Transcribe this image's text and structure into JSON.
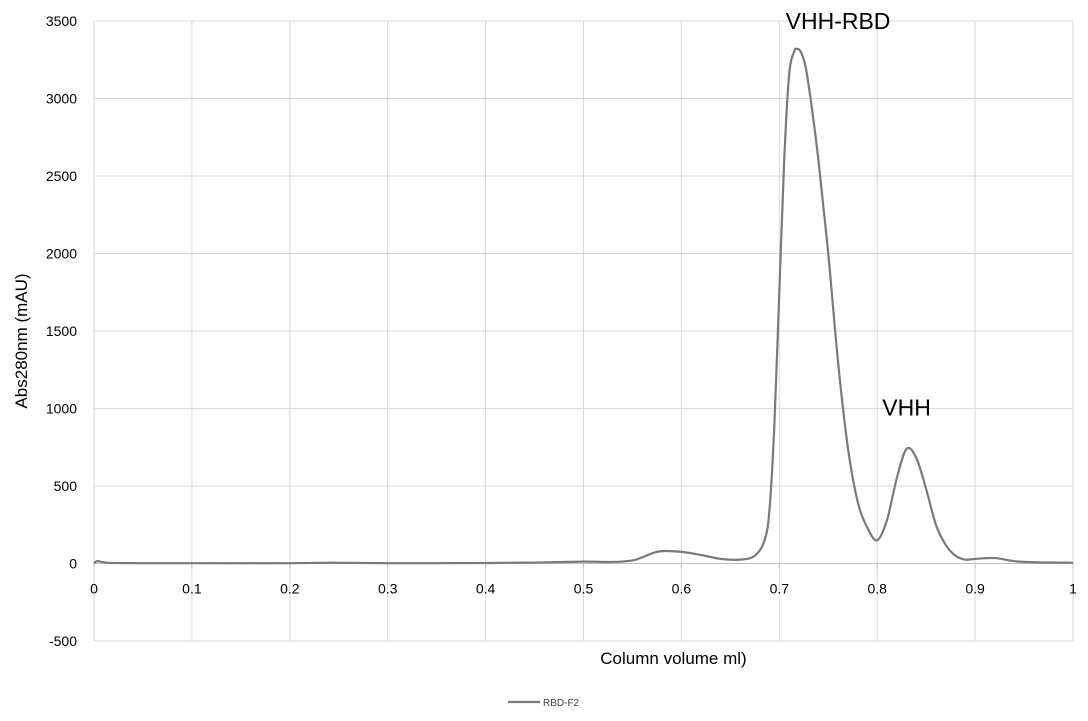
{
  "chart_data": {
    "type": "line",
    "title": "",
    "xlabel": "Column volume  ml)",
    "ylabel": "Abs280nm  (mAU)",
    "xlim": [
      0,
      1
    ],
    "ylim": [
      -500,
      3500
    ],
    "x_ticks": [
      0,
      0.1,
      0.2,
      0.3,
      0.4,
      0.5,
      0.6,
      0.7,
      0.8,
      0.9,
      1
    ],
    "x_tick_labels": [
      "0",
      "0.1",
      "0.2",
      "0.3",
      "0.4",
      "0.5",
      "0.6",
      "0.7",
      "0.8",
      "0.9",
      "1"
    ],
    "y_ticks": [
      -500,
      0,
      500,
      1000,
      1500,
      2000,
      2500,
      3000,
      3500
    ],
    "y_tick_labels": [
      "-500",
      "0",
      "500",
      "1000",
      "1500",
      "2000",
      "2500",
      "3000",
      "3500"
    ],
    "grid": true,
    "legend_position": "bottom-center",
    "series": [
      {
        "name": "RBD-F2",
        "color": "#7a7a7a",
        "x": [
          0,
          0.003,
          0.01,
          0.02,
          0.07,
          0.1,
          0.2,
          0.24,
          0.3,
          0.4,
          0.41,
          0.45,
          0.5,
          0.53,
          0.55,
          0.56,
          0.57,
          0.58,
          0.6,
          0.62,
          0.64,
          0.66,
          0.675,
          0.685,
          0.69,
          0.695,
          0.7,
          0.705,
          0.71,
          0.715,
          0.718,
          0.722,
          0.727,
          0.733,
          0.74,
          0.75,
          0.76,
          0.77,
          0.78,
          0.79,
          0.8,
          0.81,
          0.82,
          0.83,
          0.84,
          0.85,
          0.86,
          0.87,
          0.88,
          0.89,
          0.9,
          0.92,
          0.94,
          0.96,
          1.0
        ],
        "y": [
          0,
          15,
          8,
          3,
          2,
          2,
          2,
          5,
          2,
          3,
          4,
          6,
          12,
          10,
          20,
          40,
          65,
          80,
          75,
          55,
          30,
          25,
          50,
          150,
          350,
          900,
          1750,
          2600,
          3150,
          3300,
          3320,
          3300,
          3200,
          2950,
          2600,
          2000,
          1300,
          750,
          400,
          230,
          150,
          280,
          550,
          740,
          680,
          480,
          250,
          120,
          50,
          25,
          30,
          35,
          15,
          8,
          5
        ]
      }
    ],
    "annotations": [
      {
        "text": "VHH-RBD",
        "x": 0.76,
        "y": 3450
      },
      {
        "text": "VHH",
        "x": 0.83,
        "y": 955
      }
    ]
  }
}
